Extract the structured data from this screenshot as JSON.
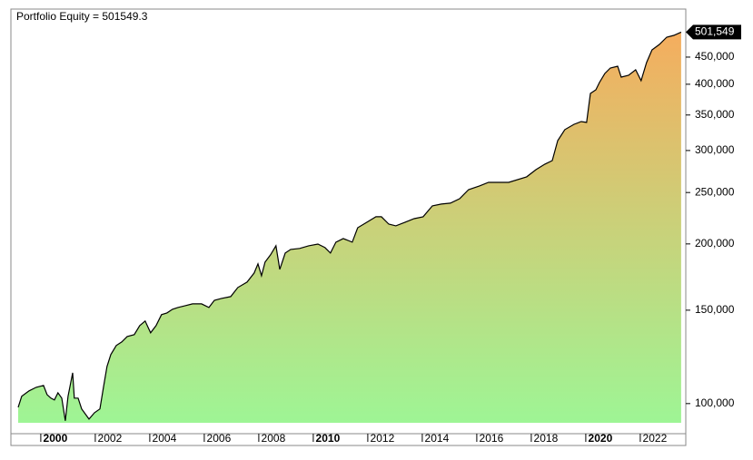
{
  "chart_data": {
    "type": "area",
    "title": "Portfolio Equity = 501549.3",
    "x": [
      1999.17,
      1999.3,
      1999.57,
      1999.83,
      2000.1,
      2000.23,
      2000.37,
      2000.5,
      2000.63,
      2000.77,
      2000.9,
      2001,
      2001.17,
      2001.23,
      2001.37,
      2001.5,
      2001.77,
      2001.97,
      2002.17,
      2002.3,
      2002.43,
      2002.57,
      2002.77,
      2002.97,
      2003.17,
      2003.43,
      2003.63,
      2003.83,
      2004.03,
      2004.23,
      2004.43,
      2004.63,
      2004.83,
      2005.03,
      2005.3,
      2005.57,
      2005.9,
      2006.17,
      2006.37,
      2006.63,
      2006.97,
      2007.23,
      2007.57,
      2007.83,
      2007.97,
      2008.1,
      2008.23,
      2008.43,
      2008.63,
      2008.77,
      2008.97,
      2009.17,
      2009.5,
      2009.83,
      2010.17,
      2010.43,
      2010.63,
      2010.83,
      2011.1,
      2011.43,
      2011.63,
      2011.97,
      2012.3,
      2012.5,
      2012.77,
      2013.03,
      2013.37,
      2013.7,
      2014.03,
      2014.37,
      2014.7,
      2015.03,
      2015.37,
      2015.7,
      2016.1,
      2016.43,
      2017.17,
      2017.83,
      2018.17,
      2018.5,
      2018.77,
      2018.97,
      2019.23,
      2019.57,
      2019.83,
      2020.03,
      2020.17,
      2020.37,
      2020.5,
      2020.7,
      2020.9,
      2021.17,
      2021.3,
      2021.57,
      2021.83,
      2022.03,
      2022.23,
      2022.43,
      2022.7,
      2022.97,
      2023.23,
      2023.5
    ],
    "series": [
      {
        "name": "Portfolio Equity",
        "color": "#000000",
        "values": [
          98400,
          103200,
          105700,
          107300,
          108200,
          104000,
          102400,
          101600,
          104800,
          102400,
          92800,
          103200,
          114300,
          102400,
          102400,
          97700,
          93500,
          96100,
          97700,
          107300,
          117500,
          123700,
          128700,
          130700,
          133800,
          134900,
          140300,
          143100,
          136000,
          140300,
          147100,
          148200,
          150600,
          151800,
          153000,
          154200,
          154200,
          151800,
          156600,
          157900,
          159100,
          165500,
          169500,
          176300,
          183400,
          174200,
          184800,
          190700,
          198400,
          179100,
          192200,
          195300,
          196100,
          198400,
          199900,
          196800,
          192200,
          201500,
          204700,
          201500,
          214600,
          219800,
          225000,
          225000,
          218000,
          216300,
          219800,
          223200,
          225000,
          235900,
          237800,
          238700,
          243400,
          253200,
          257300,
          261300,
          261300,
          267600,
          276100,
          282800,
          287200,
          313200,
          328400,
          336200,
          340200,
          338900,
          384400,
          390500,
          403000,
          419200,
          429200,
          432600,
          412600,
          415900,
          425900,
          406200,
          439400,
          464300,
          475400,
          490600,
          494500,
          501549.3
        ]
      }
    ],
    "fill_gradient": [
      "#9ef595",
      "#f5ad5e"
    ],
    "last_value_label": "501,549",
    "xlim": [
      1999.07,
      2023.67
    ],
    "xticks": [
      2000,
      2002,
      2004,
      2006,
      2008,
      2010,
      2012,
      2014,
      2016,
      2018,
      2020,
      2022
    ],
    "ylim": [
      92000,
      550000
    ],
    "log_y": true,
    "yticks": [
      {
        "value": 100000,
        "label": "100,000"
      },
      {
        "value": 150000,
        "label": "150,000"
      },
      {
        "value": 200000,
        "label": "200,000"
      },
      {
        "value": 250000,
        "label": "250,000"
      },
      {
        "value": 300000,
        "label": "300,000"
      },
      {
        "value": 350000,
        "label": "350,000"
      },
      {
        "value": 400000,
        "label": "400,000"
      },
      {
        "value": 450000,
        "label": "450,000"
      }
    ]
  }
}
